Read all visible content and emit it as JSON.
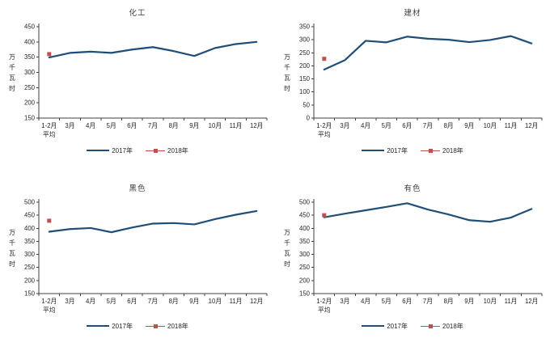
{
  "colors": {
    "series_2017": "#1F4E79",
    "series_2018": "#C0504D",
    "axis": "#404040",
    "tick_text": "#262626",
    "background": "#FFFFFF"
  },
  "x_axis_display": {
    "labels": [
      "1-2月",
      "3月",
      "4月",
      "5月",
      "6月",
      "7月",
      "8月",
      "9月",
      "10月",
      "11月",
      "12月"
    ],
    "first_label_line2": "平均"
  },
  "chart_data": [
    {
      "type": "line",
      "title": "化工",
      "ylabel": "万千瓦时",
      "categories": [
        "1-2月平均",
        "3月",
        "4月",
        "5月",
        "6月",
        "7月",
        "8月",
        "9月",
        "10月",
        "11月",
        "12月"
      ],
      "series": [
        {
          "name": "2017年",
          "style": "line",
          "values": [
            349,
            364,
            368,
            364,
            375,
            383,
            370,
            354,
            380,
            393,
            400
          ]
        },
        {
          "name": "2018年",
          "style": "square-marker",
          "values": [
            360
          ]
        }
      ],
      "ylim": [
        150,
        450
      ],
      "ystep": 50,
      "grid": false,
      "legend_position": "bottom"
    },
    {
      "type": "line",
      "title": "建材",
      "ylabel": "万千瓦时",
      "categories": [
        "1-2月平均",
        "3月",
        "4月",
        "5月",
        "6月",
        "7月",
        "8月",
        "9月",
        "10月",
        "11月",
        "12月"
      ],
      "series": [
        {
          "name": "2017年",
          "style": "line",
          "values": [
            186,
            222,
            296,
            290,
            312,
            304,
            300,
            291,
            299,
            314,
            286
          ]
        },
        {
          "name": "2018年",
          "style": "square-marker",
          "values": [
            227
          ]
        }
      ],
      "ylim": [
        0,
        350
      ],
      "ystep": 50,
      "grid": false,
      "legend_position": "bottom"
    },
    {
      "type": "line",
      "title": "黑色",
      "ylabel": "万千瓦时",
      "categories": [
        "1-2月平均",
        "3月",
        "4月",
        "5月",
        "6月",
        "7月",
        "8月",
        "9月",
        "10月",
        "11月",
        "12月"
      ],
      "series": [
        {
          "name": "2017年",
          "style": "line",
          "values": [
            387,
            397,
            401,
            385,
            403,
            418,
            420,
            415,
            435,
            452,
            466
          ]
        },
        {
          "name": "2018年",
          "style": "square-marker",
          "values": [
            429
          ]
        }
      ],
      "ylim": [
        150,
        500
      ],
      "ystep": 50,
      "grid": false,
      "legend_position": "bottom"
    },
    {
      "type": "line",
      "title": "有色",
      "ylabel": "万千瓦时",
      "categories": [
        "1-2月平均",
        "3月",
        "4月",
        "5月",
        "6月",
        "7月",
        "8月",
        "9月",
        "10月",
        "11月",
        "12月"
      ],
      "series": [
        {
          "name": "2017年",
          "style": "line",
          "values": [
            442,
            456,
            469,
            482,
            496,
            472,
            453,
            431,
            425,
            441,
            474
          ]
        },
        {
          "name": "2018年",
          "style": "square-marker",
          "values": [
            450
          ]
        }
      ],
      "ylim": [
        150,
        500
      ],
      "ystep": 50,
      "grid": false,
      "legend_position": "bottom"
    }
  ]
}
